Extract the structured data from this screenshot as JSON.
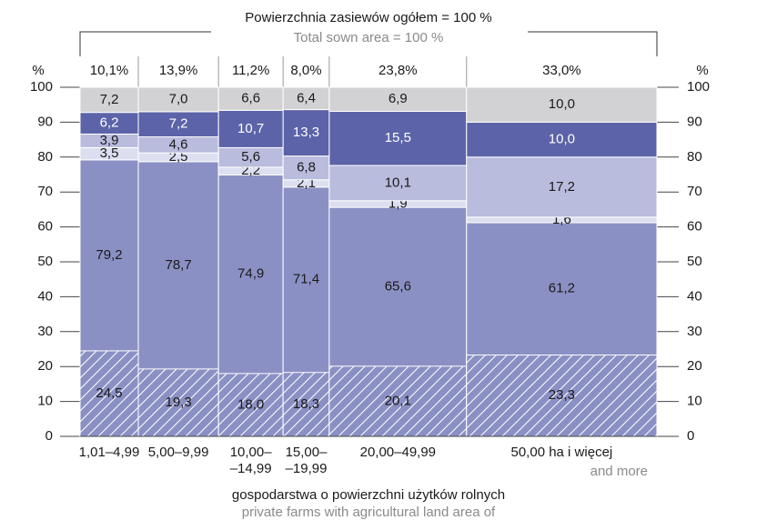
{
  "chart_data": {
    "type": "marimekko",
    "title": "Powierzchnia zasiewów ogółem = 100 %",
    "subtitle": "Total sown area = 100 %",
    "x_label": "gospodarstwa o powierzchni użytków rolnych",
    "x_label_sub": "private farms with agricultural land area of",
    "y_unit": "%",
    "categories": [
      [
        "1,01–4,99"
      ],
      [
        "5,00–9,99"
      ],
      [
        "10,00–",
        "–14,99"
      ],
      [
        "15,00–",
        "–19,99"
      ],
      [
        "20,00–49,99"
      ],
      [
        "50,00 ha i więcej"
      ]
    ],
    "category_notes": [
      null,
      null,
      null,
      null,
      null,
      "and more"
    ],
    "widths": [
      10.1,
      13.9,
      11.2,
      8.0,
      23.8,
      33.0
    ],
    "width_labels": [
      "10,1%",
      "13,9%",
      "11,2%",
      "8,0%",
      "23,8%",
      "33,0%"
    ],
    "ylim": [
      0,
      100
    ],
    "yticks": [
      0,
      10,
      20,
      30,
      40,
      50,
      60,
      70,
      80,
      90,
      100
    ],
    "series": [
      {
        "color": "#8b90c4",
        "values": [
          79.2,
          78.7,
          74.9,
          71.4,
          65.6,
          61.2
        ],
        "value_labels": [
          "79,2",
          "78,7",
          "74,9",
          "71,4",
          "65,6",
          "61,2"
        ]
      },
      {
        "color": "#dcdff0",
        "values": [
          3.5,
          2.5,
          2.2,
          2.1,
          1.9,
          1.6
        ],
        "value_labels": [
          "3,5",
          "2,5",
          "2,2",
          "2,1",
          "1,9",
          "1,6"
        ]
      },
      {
        "color": "#b9bcdd",
        "values": [
          3.9,
          4.6,
          5.6,
          6.8,
          10.1,
          17.2
        ],
        "value_labels": [
          "3,9",
          "4,6",
          "5,6",
          "6,8",
          "10,1",
          "17,2"
        ]
      },
      {
        "color": "#5c63a8",
        "values": [
          6.2,
          7.2,
          10.7,
          13.3,
          15.5,
          10.0
        ],
        "value_labels": [
          "6,2",
          "7,2",
          "10,7",
          "13,3",
          "15,5",
          "10,0"
        ]
      },
      {
        "color": "#d2d2d5",
        "values": [
          7.2,
          7.0,
          6.6,
          6.4,
          6.9,
          10.0
        ],
        "value_labels": [
          "7,2",
          "7,0",
          "6,6",
          "6,4",
          "6,9",
          "10,0"
        ]
      }
    ],
    "hatched": {
      "color": "#8b90c4",
      "values": [
        24.5,
        19.3,
        18.0,
        18.3,
        20.1,
        23.3
      ],
      "value_labels": [
        "24,5",
        "19,3",
        "18,0",
        "18,3",
        "20,1",
        "23,3"
      ]
    }
  }
}
